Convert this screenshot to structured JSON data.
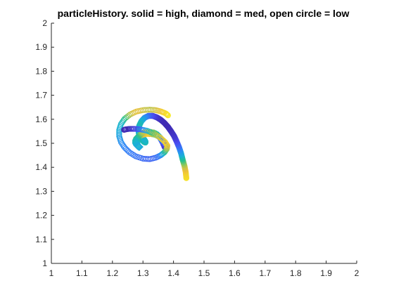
{
  "chart_data": {
    "type": "scatter",
    "title": "particleHistory. solid = high, diamond = med, open circle = low",
    "xlabel": "",
    "ylabel": "",
    "xlim": [
      1,
      2
    ],
    "ylim": [
      1,
      2
    ],
    "xticks": [
      "1",
      "1.1",
      "1.2",
      "1.3",
      "1.4",
      "1.5",
      "1.6",
      "1.7",
      "1.8",
      "1.9",
      "2"
    ],
    "yticks": [
      "1",
      "1.1",
      "1.2",
      "1.3",
      "1.4",
      "1.5",
      "1.6",
      "1.7",
      "1.8",
      "1.9",
      "2"
    ],
    "grid": false,
    "colormap": [
      "#3e26a8",
      "#4a4bf0",
      "#2e87f7",
      "#19b3d5",
      "#23c18f",
      "#94c85a",
      "#efc13a",
      "#f9f21c"
    ],
    "series": [
      {
        "marker": "filled-circle",
        "x": [
          1.442,
          1.44,
          1.436,
          1.43,
          1.425,
          1.418,
          1.41,
          1.402,
          1.392,
          1.382,
          1.37,
          1.358,
          1.345,
          1.332,
          1.318,
          1.305,
          1.295,
          1.288,
          1.285,
          1.287,
          1.292,
          1.298,
          1.304,
          1.308,
          1.308,
          1.304
        ],
        "y": [
          1.355,
          1.38,
          1.405,
          1.432,
          1.458,
          1.484,
          1.508,
          1.53,
          1.55,
          1.568,
          1.585,
          1.598,
          1.608,
          1.614,
          1.614,
          1.606,
          1.592,
          1.574,
          1.555,
          1.537,
          1.522,
          1.512,
          1.505,
          1.503,
          1.508,
          1.516
        ],
        "c": [
          0.95,
          0.9,
          0.8,
          0.6,
          0.4,
          0.25,
          0.15,
          0.08,
          0.05,
          0.03,
          0.02,
          0.03,
          0.06,
          0.12,
          0.2,
          0.3,
          0.42,
          0.5,
          0.45,
          0.42,
          0.44,
          0.48,
          0.5,
          0.5,
          0.48,
          0.45
        ]
      },
      {
        "marker": "diamond",
        "x": [
          1.375,
          1.368,
          1.36,
          1.35,
          1.338,
          1.325,
          1.312,
          1.3,
          1.29,
          1.282,
          1.278,
          1.278,
          1.282,
          1.288
        ],
        "y": [
          1.48,
          1.5,
          1.518,
          1.532,
          1.54,
          1.543,
          1.543,
          1.54,
          1.534,
          1.524,
          1.512,
          1.5,
          1.49,
          1.485
        ],
        "c": [
          0.05,
          0.12,
          0.25,
          0.45,
          0.65,
          0.8,
          0.9,
          0.85,
          0.75,
          0.6,
          0.5,
          0.45,
          0.42,
          0.4
        ]
      },
      {
        "marker": "open-circle",
        "x": [
          1.382,
          1.375,
          1.36,
          1.342,
          1.322,
          1.3,
          1.278,
          1.258,
          1.24,
          1.228,
          1.222,
          1.222,
          1.228,
          1.24,
          1.256,
          1.276,
          1.3,
          1.322,
          1.342,
          1.358,
          1.37,
          1.378,
          1.38,
          1.372,
          1.356,
          1.336,
          1.314,
          1.292,
          1.272,
          1.256,
          1.244,
          1.238
        ],
        "y": [
          1.616,
          1.624,
          1.632,
          1.638,
          1.64,
          1.638,
          1.632,
          1.62,
          1.602,
          1.58,
          1.555,
          1.53,
          1.505,
          1.482,
          1.462,
          1.446,
          1.436,
          1.434,
          1.44,
          1.45,
          1.462,
          1.476,
          1.49,
          1.506,
          1.524,
          1.54,
          1.552,
          1.558,
          1.56,
          1.56,
          1.558,
          1.556
        ],
        "c": [
          0.98,
          0.95,
          0.9,
          0.82,
          0.78,
          0.8,
          0.85,
          0.8,
          0.6,
          0.45,
          0.42,
          0.38,
          0.32,
          0.28,
          0.26,
          0.24,
          0.22,
          0.2,
          0.22,
          0.28,
          0.5,
          0.7,
          0.85,
          0.92,
          0.9,
          0.7,
          0.45,
          0.25,
          0.12,
          0.06,
          0.03,
          0.02
        ]
      }
    ]
  }
}
